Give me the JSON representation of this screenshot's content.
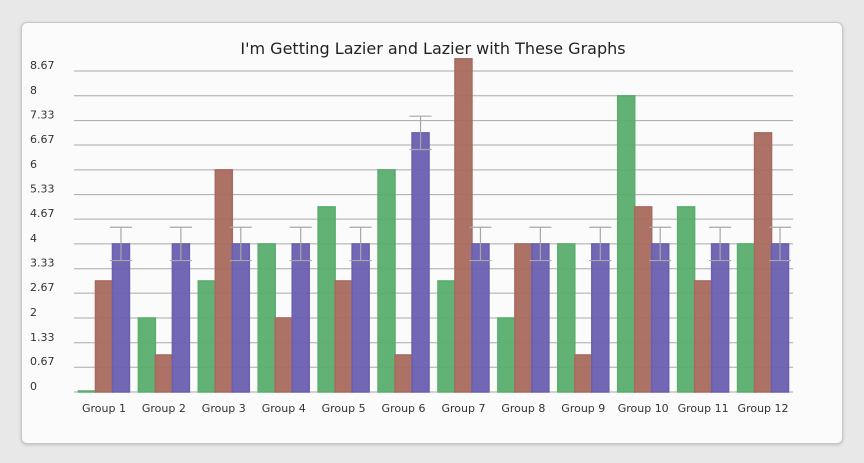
{
  "chart_data": {
    "type": "bar",
    "title": "I'm Getting Lazier and Lazier with These Graphs",
    "xlabel": "",
    "ylabel": "",
    "categories": [
      "Group 1",
      "Group 2",
      "Group 3",
      "Group 4",
      "Group 5",
      "Group 6",
      "Group 7",
      "Group 8",
      "Group 9",
      "Group 10",
      "Group 11",
      "Group 12"
    ],
    "ylim": [
      0,
      8.67
    ],
    "yticks": [
      "0",
      "0.67",
      "1.33",
      "2",
      "2.67",
      "3.33",
      "4",
      "4.67",
      "5.33",
      "6",
      "6.67",
      "7.33",
      "8",
      "8.67"
    ],
    "grid": true,
    "series": [
      {
        "color": "#5aad6e",
        "values": [
          0,
          2,
          3,
          4,
          5,
          6,
          3,
          2,
          4,
          8,
          5,
          4
        ]
      },
      {
        "color": "#a86a5e",
        "values": [
          3,
          1,
          6,
          2,
          3,
          1,
          9,
          4,
          1,
          5,
          3,
          7
        ]
      },
      {
        "color": "#6a5fb0",
        "values": [
          4,
          4,
          4,
          4,
          4,
          7,
          4,
          4,
          4,
          4,
          4,
          4
        ],
        "error": [
          0.45,
          0.45,
          0.45,
          0.45,
          0.45,
          0.45,
          0.45,
          0.45,
          0.45,
          0.45,
          0.45,
          0.45
        ]
      }
    ]
  }
}
